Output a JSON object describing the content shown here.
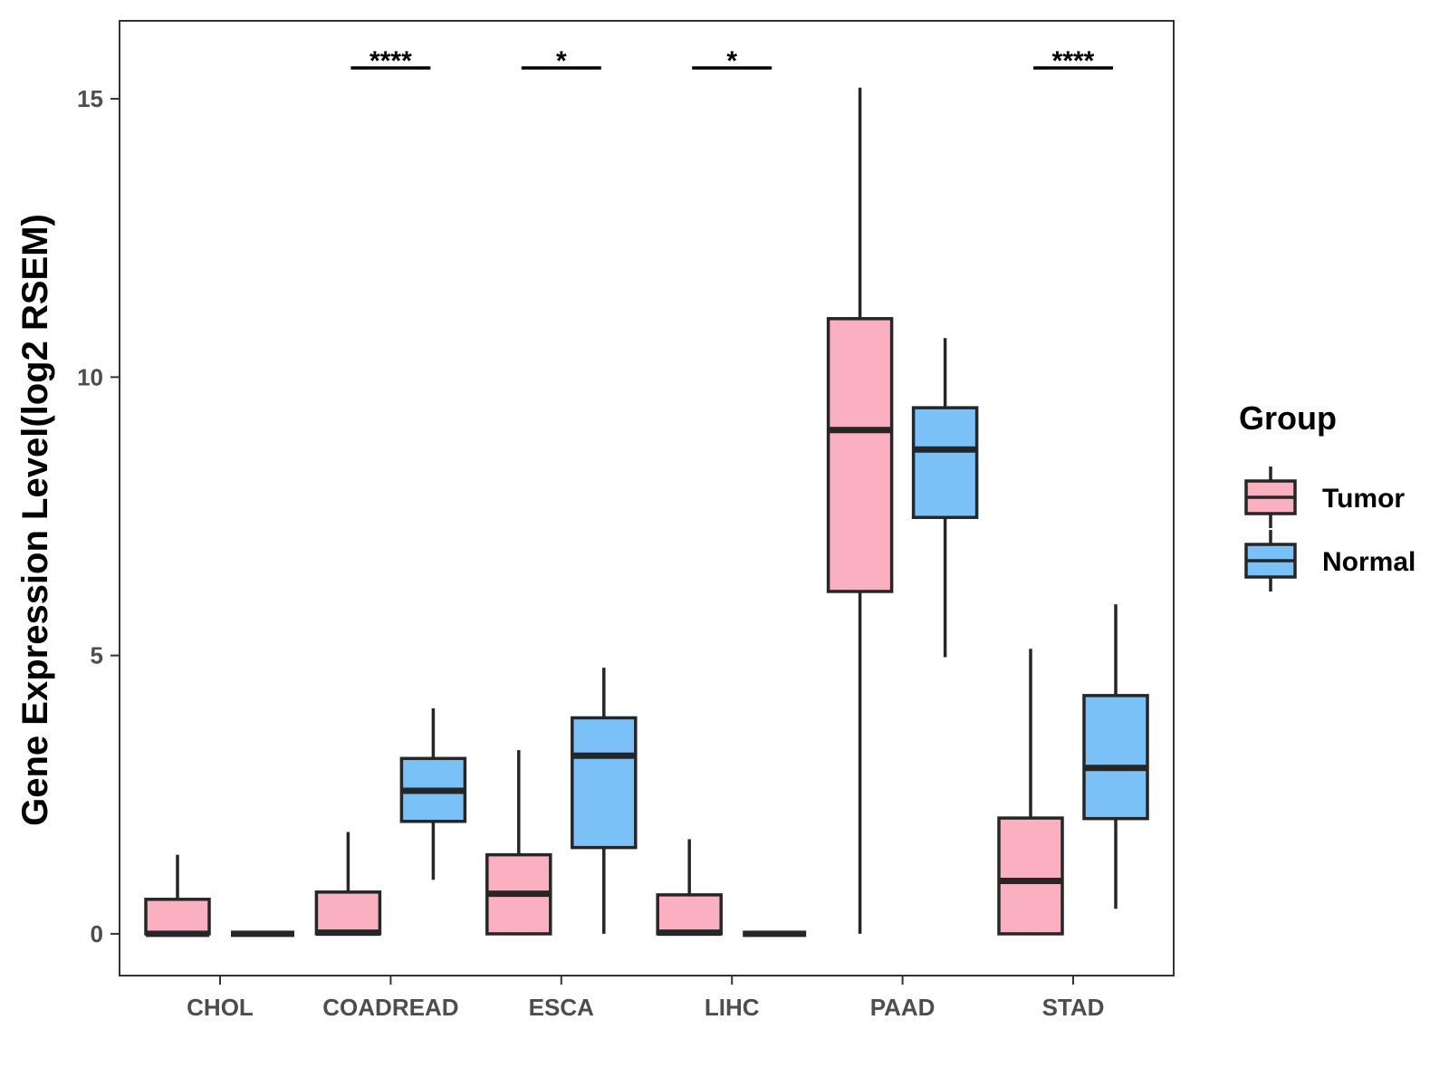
{
  "chart_data": {
    "type": "boxplot",
    "title": "",
    "xlabel": "",
    "ylabel": "Gene Expression Level(log2 RSEM)",
    "ylim": [
      -0.75,
      16.4
    ],
    "yticks": [
      0,
      5,
      10,
      15
    ],
    "categories": [
      "CHOL",
      "COADREAD",
      "ESCA",
      "LIHC",
      "PAAD",
      "STAD"
    ],
    "legend": {
      "title": "Group",
      "position": "right",
      "entries": [
        {
          "name": "Tumor",
          "color": "#FBB0C1"
        },
        {
          "name": "Normal",
          "color": "#7AC1F8"
        }
      ]
    },
    "series": [
      {
        "name": "Tumor",
        "color": "#FBB0C1",
        "boxes": [
          {
            "category": "CHOL",
            "min": 0,
            "q1": 0,
            "median": 0,
            "q3": 0.62,
            "max": 1.42
          },
          {
            "category": "COADREAD",
            "min": 0,
            "q1": 0,
            "median": 0.02,
            "q3": 0.75,
            "max": 1.83
          },
          {
            "category": "ESCA",
            "min": 0,
            "q1": 0,
            "median": 0.72,
            "q3": 1.42,
            "max": 3.3
          },
          {
            "category": "LIHC",
            "min": 0,
            "q1": 0,
            "median": 0.02,
            "q3": 0.7,
            "max": 1.7
          },
          {
            "category": "PAAD",
            "min": 0,
            "q1": 6.15,
            "median": 9.05,
            "q3": 11.05,
            "max": 15.2
          },
          {
            "category": "STAD",
            "min": 0,
            "q1": 0,
            "median": 0.95,
            "q3": 2.08,
            "max": 5.12
          }
        ]
      },
      {
        "name": "Normal",
        "color": "#7AC1F8",
        "boxes": [
          {
            "category": "CHOL",
            "min": 0,
            "q1": 0,
            "median": 0,
            "q3": 0,
            "max": 0
          },
          {
            "category": "COADREAD",
            "min": 0.97,
            "q1": 2.02,
            "median": 2.57,
            "q3": 3.15,
            "max": 4.05
          },
          {
            "category": "ESCA",
            "min": 0,
            "q1": 1.55,
            "median": 3.2,
            "q3": 3.88,
            "max": 4.78
          },
          {
            "category": "LIHC",
            "min": 0,
            "q1": 0,
            "median": 0,
            "q3": 0,
            "max": 0
          },
          {
            "category": "PAAD",
            "min": 4.97,
            "q1": 7.48,
            "median": 8.7,
            "q3": 9.45,
            "max": 10.7
          },
          {
            "category": "STAD",
            "min": 0.45,
            "q1": 2.07,
            "median": 2.98,
            "q3": 4.28,
            "max": 5.92
          }
        ]
      }
    ],
    "annotations": [
      {
        "category": "COADREAD",
        "label": "****"
      },
      {
        "category": "ESCA",
        "label": "*"
      },
      {
        "category": "LIHC",
        "label": "*"
      },
      {
        "category": "STAD",
        "label": "****"
      }
    ]
  }
}
